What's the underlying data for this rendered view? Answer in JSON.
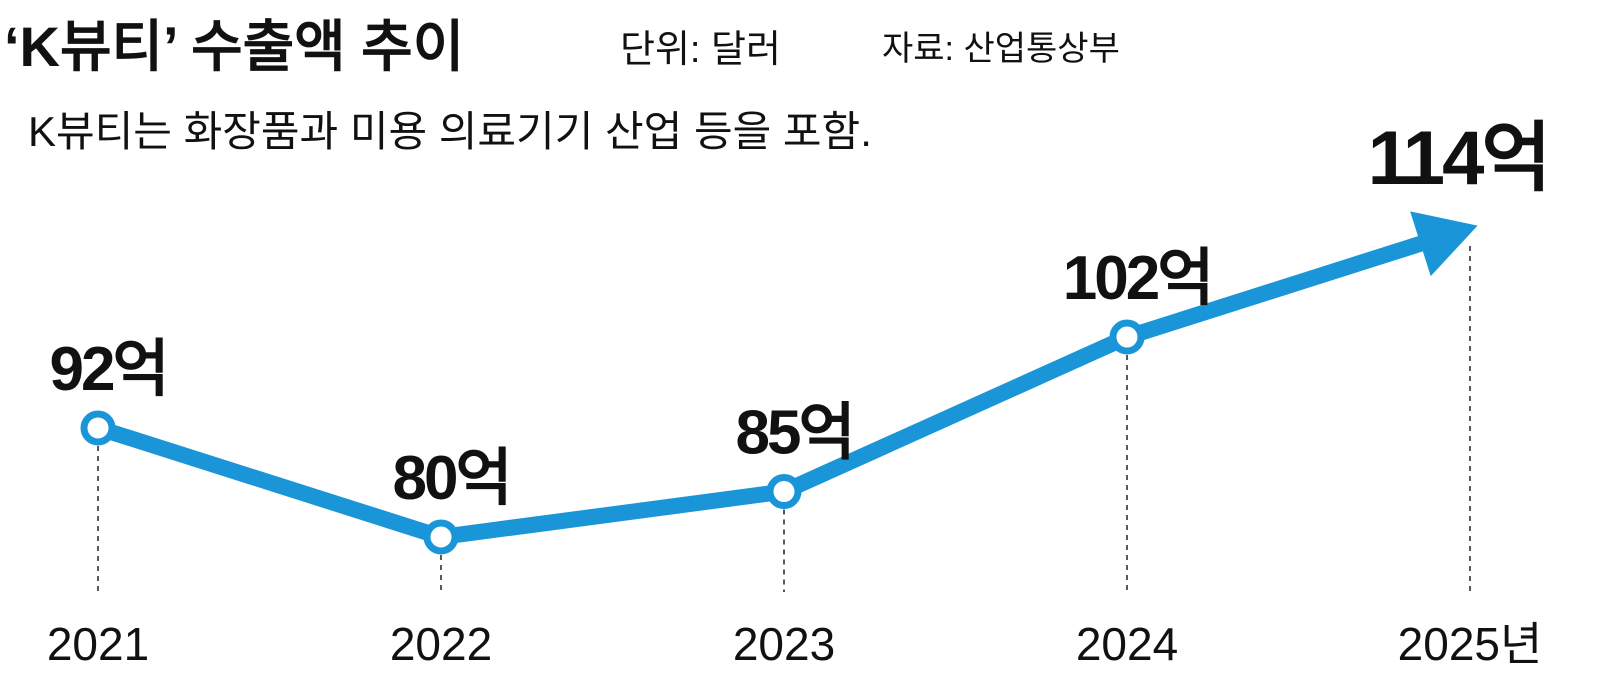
{
  "chart_data": {
    "type": "line",
    "title": "‘K뷰티’ 수출액 추이",
    "unit": "단위: 달러",
    "source": "자료: 산업통상부",
    "subtitle": "K뷰티는 화장품과 미용 의료기기 산업 등을 포함.",
    "categories": [
      "2021",
      "2022",
      "2023",
      "2024",
      "2025년"
    ],
    "values": [
      92,
      80,
      85,
      102,
      114
    ],
    "value_labels": [
      "92억",
      "80억",
      "85억",
      "102억",
      "114억"
    ],
    "color": "#1a96d8"
  }
}
